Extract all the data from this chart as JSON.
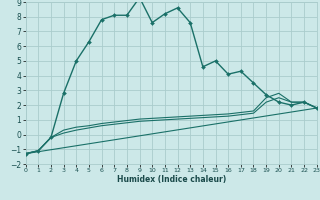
{
  "xlabel": "Humidex (Indice chaleur)",
  "background_color": "#cce8e8",
  "grid_color": "#aacccc",
  "line_color": "#1a7068",
  "xlim": [
    0,
    23
  ],
  "ylim": [
    -2,
    9
  ],
  "xticks": [
    0,
    1,
    2,
    3,
    4,
    5,
    6,
    7,
    8,
    9,
    10,
    11,
    12,
    13,
    14,
    15,
    16,
    17,
    18,
    19,
    20,
    21,
    22,
    23
  ],
  "yticks": [
    -2,
    -1,
    0,
    1,
    2,
    3,
    4,
    5,
    6,
    7,
    8,
    9
  ],
  "line1_x": [
    0,
    1,
    2,
    3,
    4,
    5,
    6,
    7,
    8,
    9,
    10,
    11,
    12,
    13,
    14,
    15,
    16,
    17,
    18,
    19,
    20,
    21,
    22,
    23
  ],
  "line1_y": [
    -1.3,
    -1.1,
    -0.2,
    2.8,
    5.0,
    6.3,
    7.8,
    8.1,
    8.1,
    9.3,
    7.6,
    8.2,
    8.6,
    7.6,
    4.6,
    5.0,
    4.1,
    4.3,
    3.5,
    2.7,
    2.2,
    2.0,
    2.2,
    1.8
  ],
  "line2_x": [
    0,
    1,
    2,
    3,
    4,
    5,
    6,
    7,
    8,
    9,
    10,
    11,
    12,
    13,
    14,
    15,
    16,
    17,
    18,
    19,
    20,
    21,
    22,
    23
  ],
  "line2_y": [
    -1.3,
    -1.1,
    -0.2,
    0.3,
    0.5,
    0.6,
    0.75,
    0.85,
    0.95,
    1.05,
    1.1,
    1.15,
    1.2,
    1.25,
    1.3,
    1.35,
    1.4,
    1.5,
    1.6,
    2.5,
    2.8,
    2.2,
    2.2,
    1.8
  ],
  "line3_x": [
    0,
    1,
    2,
    3,
    4,
    5,
    6,
    7,
    8,
    9,
    10,
    11,
    12,
    13,
    14,
    15,
    16,
    17,
    18,
    19,
    20,
    21,
    22,
    23
  ],
  "line3_y": [
    -1.3,
    -1.1,
    -0.2,
    0.1,
    0.3,
    0.45,
    0.6,
    0.7,
    0.8,
    0.9,
    0.95,
    1.0,
    1.05,
    1.1,
    1.15,
    1.2,
    1.25,
    1.35,
    1.45,
    2.2,
    2.5,
    2.2,
    2.2,
    1.8
  ],
  "line4_x": [
    0,
    23
  ],
  "line4_y": [
    -1.3,
    1.8
  ]
}
